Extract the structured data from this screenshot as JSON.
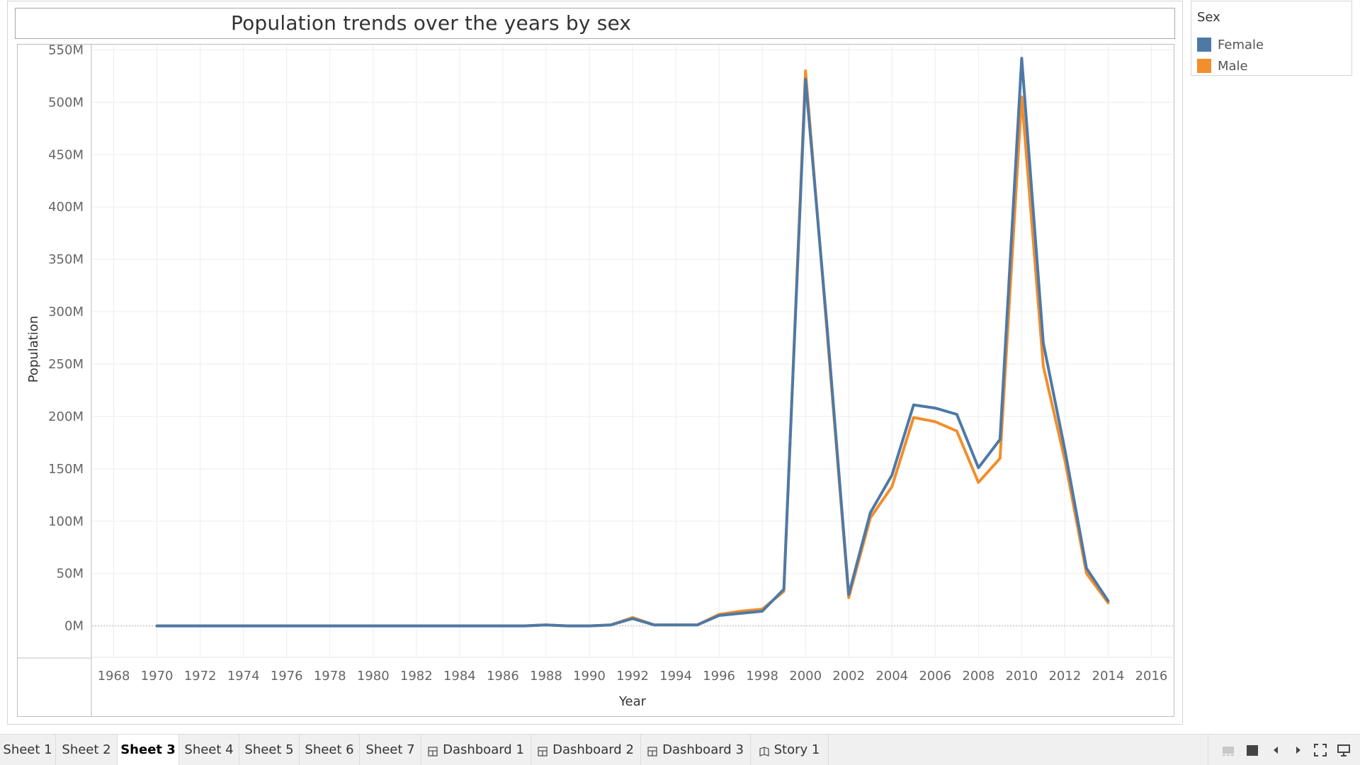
{
  "chart_data": {
    "type": "line",
    "title": "Population trends over the years by sex",
    "xlabel": "Year",
    "ylabel": "Population",
    "xlim": [
      1967,
      2017
    ],
    "ylim": [
      -30000000,
      555000000
    ],
    "x_ticks": [
      1968,
      1970,
      1972,
      1974,
      1976,
      1978,
      1980,
      1982,
      1984,
      1986,
      1988,
      1990,
      1992,
      1994,
      1996,
      1998,
      2000,
      2002,
      2004,
      2006,
      2008,
      2010,
      2012,
      2014,
      2016
    ],
    "y_ticks": [
      0,
      50000000,
      100000000,
      150000000,
      200000000,
      250000000,
      300000000,
      350000000,
      400000000,
      450000000,
      500000000,
      550000000
    ],
    "y_tick_labels": [
      "0M",
      "50M",
      "100M",
      "150M",
      "200M",
      "250M",
      "300M",
      "350M",
      "400M",
      "450M",
      "500M",
      "550M"
    ],
    "grid": true,
    "legend_title": "Sex",
    "legend_position": "right",
    "x": [
      1970,
      1971,
      1972,
      1973,
      1974,
      1975,
      1976,
      1977,
      1978,
      1979,
      1980,
      1981,
      1982,
      1983,
      1984,
      1985,
      1986,
      1987,
      1988,
      1989,
      1990,
      1991,
      1992,
      1993,
      1994,
      1995,
      1996,
      1997,
      1998,
      1999,
      2000,
      2001,
      2002,
      2003,
      2004,
      2005,
      2006,
      2007,
      2008,
      2009,
      2010,
      2011,
      2012,
      2013,
      2014
    ],
    "series": [
      {
        "name": "Male",
        "color": "#f28e2b",
        "values": [
          0,
          0,
          0,
          0,
          0,
          0,
          0,
          0,
          0,
          0,
          0,
          0,
          0,
          0,
          0,
          0,
          0,
          0,
          1000000,
          0,
          0,
          1000000,
          8000000,
          1000000,
          1000000,
          1000000,
          11000000,
          14000000,
          16000000,
          33000000,
          530000000,
          280000000,
          27000000,
          103000000,
          133000000,
          199000000,
          195000000,
          186000000,
          137000000,
          160000000,
          505000000,
          248000000,
          158000000,
          50000000,
          22000000
        ]
      },
      {
        "name": "Female",
        "color": "#4e79a7",
        "values": [
          0,
          0,
          0,
          0,
          0,
          0,
          0,
          0,
          0,
          0,
          0,
          0,
          0,
          0,
          0,
          0,
          0,
          0,
          1000000,
          0,
          0,
          1000000,
          7000000,
          1000000,
          1000000,
          1000000,
          10000000,
          12000000,
          14000000,
          35000000,
          522000000,
          285000000,
          30000000,
          108000000,
          144000000,
          211000000,
          208000000,
          202000000,
          151000000,
          178000000,
          542000000,
          270000000,
          168000000,
          55000000,
          24000000
        ]
      }
    ]
  },
  "legend": {
    "title": "Sex",
    "items": [
      {
        "label": "Female",
        "color": "#4e79a7"
      },
      {
        "label": "Male",
        "color": "#f28e2b"
      }
    ]
  },
  "tabs": [
    {
      "label": "Sheet 1",
      "icon": ""
    },
    {
      "label": "Sheet 2",
      "icon": ""
    },
    {
      "label": "Sheet 3",
      "icon": "",
      "active": true
    },
    {
      "label": "Sheet 4",
      "icon": ""
    },
    {
      "label": "Sheet 5",
      "icon": ""
    },
    {
      "label": "Sheet 6",
      "icon": ""
    },
    {
      "label": "Sheet 7",
      "icon": ""
    },
    {
      "label": "Dashboard 1",
      "icon": "dashboard-icon"
    },
    {
      "label": "Dashboard 2",
      "icon": "dashboard-icon"
    },
    {
      "label": "Dashboard 3",
      "icon": "dashboard-icon"
    },
    {
      "label": "Story 1",
      "icon": "story-icon"
    }
  ],
  "nav_controls": [
    "grid-view-icon",
    "filmstrip-icon",
    "prev-sheet-icon",
    "next-sheet-icon",
    "fullscreen-icon",
    "presentation-icon"
  ]
}
